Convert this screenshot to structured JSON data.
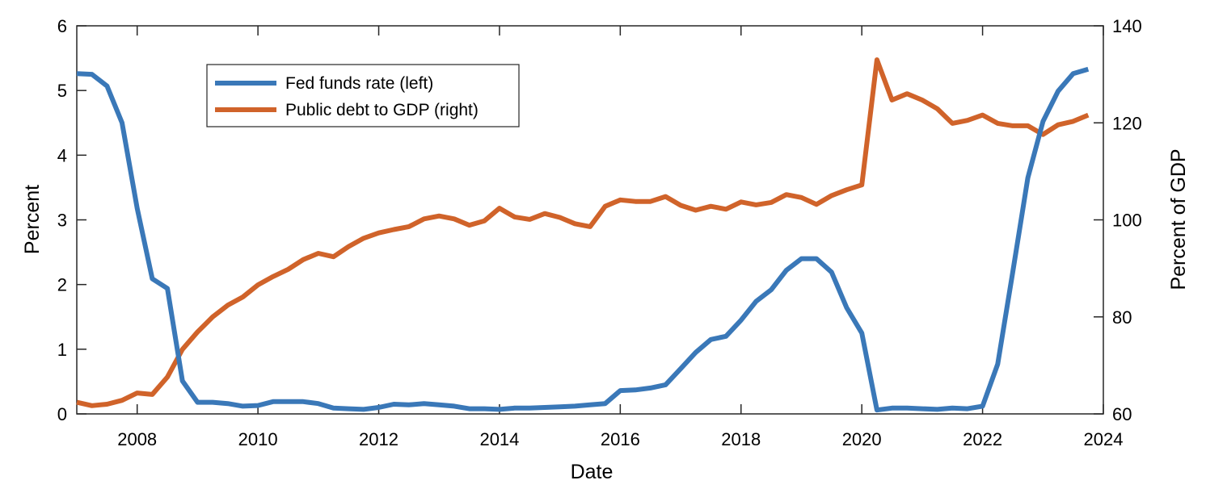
{
  "chart_data": {
    "type": "line",
    "title": "",
    "xlabel": "Date",
    "ylabel_left": "Percent",
    "ylabel_right": "Percent of GDP",
    "xlim": [
      2007,
      2024
    ],
    "ylim_left": [
      0,
      6
    ],
    "ylim_right": [
      60,
      140
    ],
    "x_ticks": [
      2008,
      2010,
      2012,
      2014,
      2016,
      2018,
      2020,
      2022,
      2024
    ],
    "y_ticks_left": [
      0,
      1,
      2,
      3,
      4,
      5,
      6
    ],
    "y_ticks_right": [
      60,
      80,
      100,
      120,
      140
    ],
    "grid": false,
    "legend_position": "top-left",
    "series": [
      {
        "name": "Fed funds rate (left)",
        "axis": "left",
        "color": "#3a78b8",
        "x": [
          2007.0,
          2007.25,
          2007.5,
          2007.75,
          2008.0,
          2008.25,
          2008.5,
          2008.75,
          2009.0,
          2009.25,
          2009.5,
          2009.75,
          2010.0,
          2010.25,
          2010.5,
          2010.75,
          2011.0,
          2011.25,
          2011.5,
          2011.75,
          2012.0,
          2012.25,
          2012.5,
          2012.75,
          2013.0,
          2013.25,
          2013.5,
          2013.75,
          2014.0,
          2014.25,
          2014.5,
          2014.75,
          2015.0,
          2015.25,
          2015.5,
          2015.75,
          2016.0,
          2016.25,
          2016.5,
          2016.75,
          2017.0,
          2017.25,
          2017.5,
          2017.75,
          2018.0,
          2018.25,
          2018.5,
          2018.75,
          2019.0,
          2019.25,
          2019.5,
          2019.75,
          2020.0,
          2020.25,
          2020.5,
          2020.75,
          2021.0,
          2021.25,
          2021.5,
          2021.75,
          2022.0,
          2022.25,
          2022.5,
          2022.75,
          2023.0,
          2023.25,
          2023.5,
          2023.75
        ],
        "values": [
          5.26,
          5.25,
          5.07,
          4.5,
          3.18,
          2.09,
          1.94,
          0.51,
          0.18,
          0.18,
          0.16,
          0.12,
          0.13,
          0.19,
          0.19,
          0.19,
          0.16,
          0.09,
          0.08,
          0.07,
          0.1,
          0.15,
          0.14,
          0.16,
          0.14,
          0.12,
          0.08,
          0.08,
          0.07,
          0.09,
          0.09,
          0.1,
          0.11,
          0.12,
          0.14,
          0.16,
          0.36,
          0.37,
          0.4,
          0.45,
          0.7,
          0.95,
          1.15,
          1.2,
          1.45,
          1.74,
          1.92,
          2.22,
          2.4,
          2.4,
          2.19,
          1.64,
          1.25,
          0.06,
          0.09,
          0.09,
          0.08,
          0.07,
          0.09,
          0.08,
          0.12,
          0.77,
          2.19,
          3.65,
          4.52,
          4.99,
          5.26,
          5.33
        ]
      },
      {
        "name": "Public debt to GDP (right)",
        "axis": "right",
        "color": "#d0632a",
        "x": [
          2007.0,
          2007.25,
          2007.5,
          2007.75,
          2008.0,
          2008.25,
          2008.5,
          2008.75,
          2009.0,
          2009.25,
          2009.5,
          2009.75,
          2010.0,
          2010.25,
          2010.5,
          2010.75,
          2011.0,
          2011.25,
          2011.5,
          2011.75,
          2012.0,
          2012.25,
          2012.5,
          2012.75,
          2013.0,
          2013.25,
          2013.5,
          2013.75,
          2014.0,
          2014.25,
          2014.5,
          2014.75,
          2015.0,
          2015.25,
          2015.5,
          2015.75,
          2016.0,
          2016.25,
          2016.5,
          2016.75,
          2017.0,
          2017.25,
          2017.5,
          2017.75,
          2018.0,
          2018.25,
          2018.5,
          2018.75,
          2019.0,
          2019.25,
          2019.5,
          2019.75,
          2020.0,
          2020.25,
          2020.5,
          2020.75,
          2021.0,
          2021.25,
          2021.5,
          2021.75,
          2022.0,
          2022.25,
          2022.5,
          2022.75,
          2023.0,
          2023.25,
          2023.5,
          2023.75
        ],
        "values": [
          62.4,
          61.7,
          62.0,
          62.8,
          64.3,
          64.0,
          67.6,
          73.3,
          76.9,
          80.0,
          82.4,
          84.1,
          86.6,
          88.3,
          89.8,
          91.8,
          93.1,
          92.4,
          94.5,
          96.2,
          97.3,
          98.0,
          98.6,
          100.2,
          100.8,
          100.2,
          98.9,
          99.8,
          102.4,
          100.6,
          100.1,
          101.3,
          100.5,
          99.2,
          98.6,
          102.8,
          104.1,
          103.8,
          103.8,
          104.8,
          103.0,
          102.0,
          102.8,
          102.2,
          103.7,
          103.1,
          103.6,
          105.2,
          104.6,
          103.2,
          105.0,
          106.2,
          107.2,
          133.0,
          124.7,
          126.0,
          124.7,
          122.9,
          119.9,
          120.5,
          121.6,
          119.9,
          119.4,
          119.4,
          117.6,
          119.6,
          120.3,
          121.6
        ]
      }
    ]
  }
}
